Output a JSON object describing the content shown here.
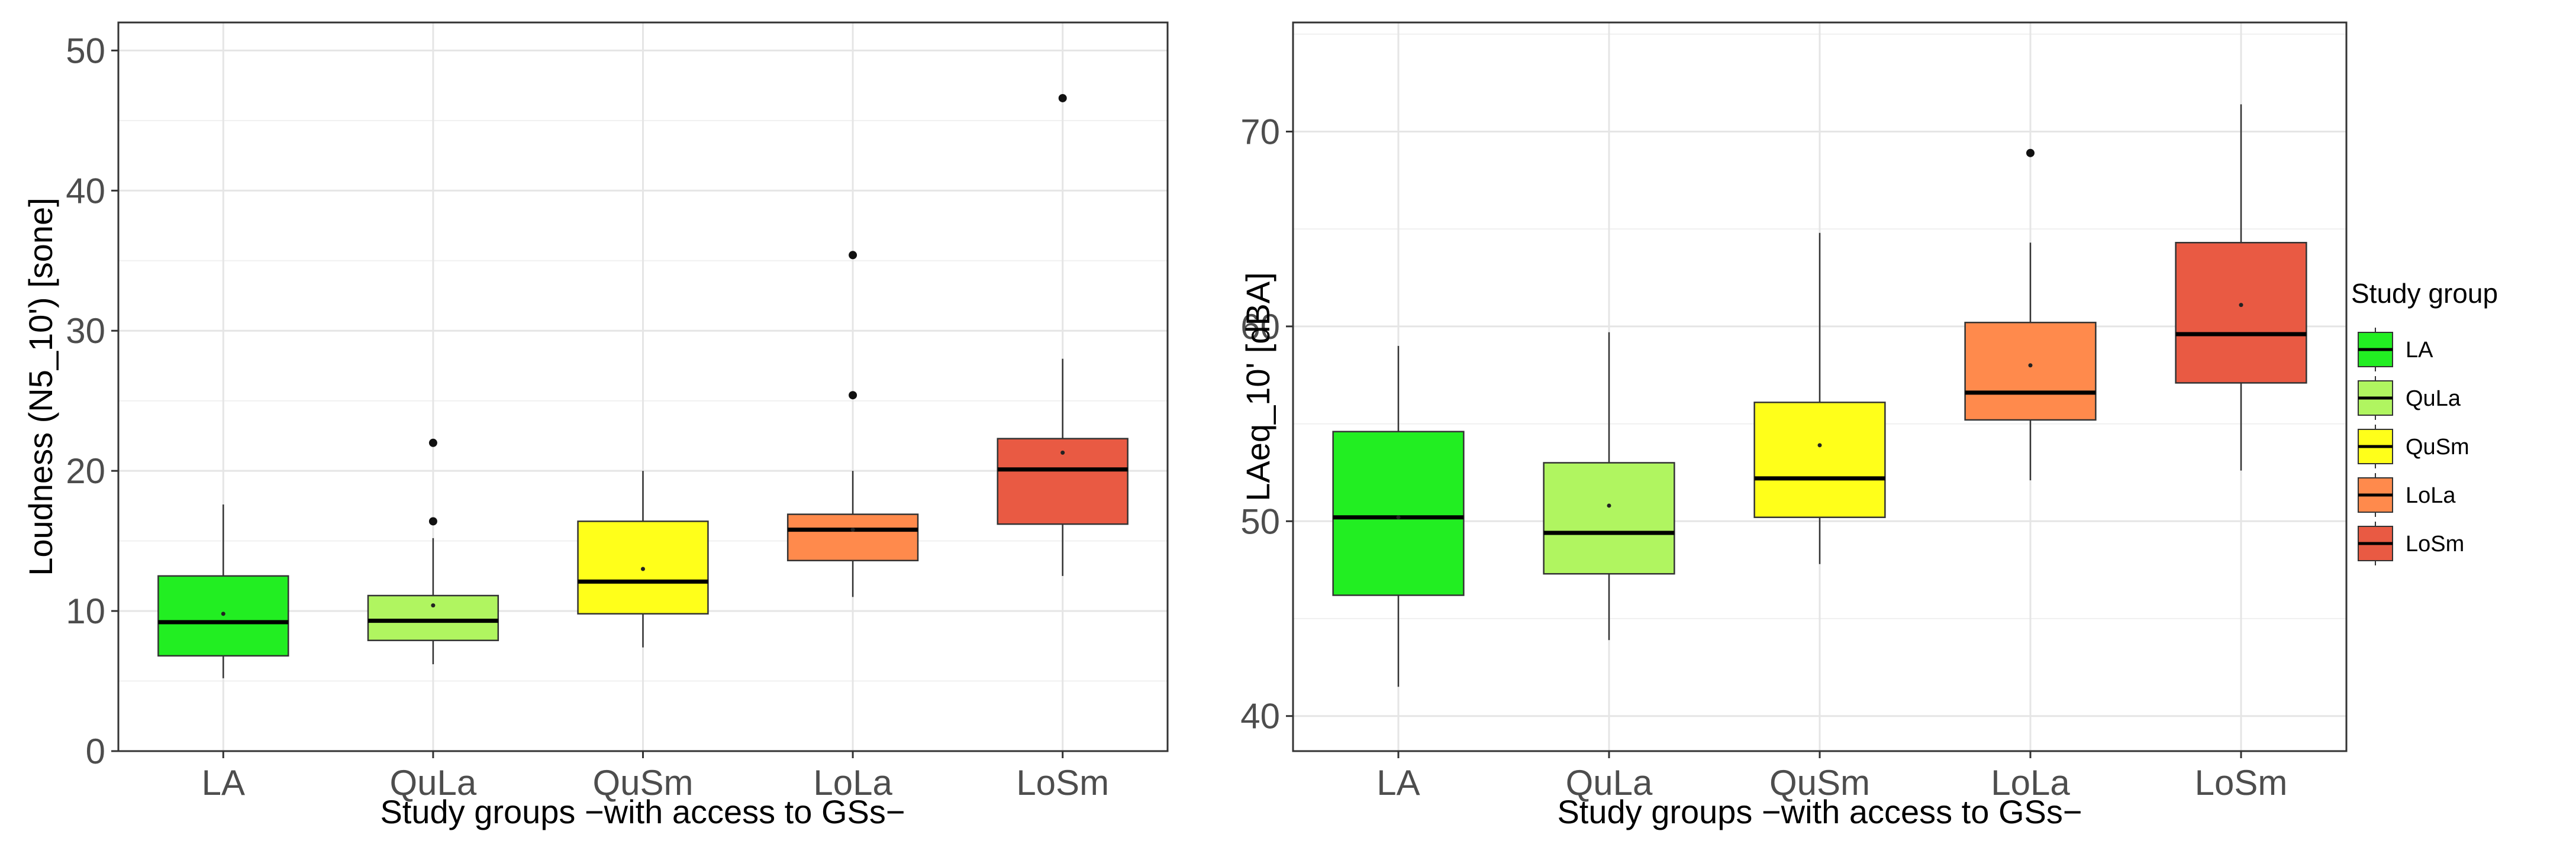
{
  "chart_data": [
    {
      "type": "boxplot",
      "xlabel": "Study groups −with access to GSs−",
      "ylabel": "Loudness (N5_10') [sone]",
      "ylim": [
        0,
        52
      ],
      "yticks": [
        0,
        10,
        20,
        30,
        40,
        50
      ],
      "grid": true,
      "categories": [
        "LA",
        "QuLa",
        "QuSm",
        "LoLa",
        "LoSm"
      ],
      "colors": [
        "#22ee22",
        "#b0f560",
        "#ffff1a",
        "#ff8a4c",
        "#e95a43"
      ],
      "boxes": [
        {
          "group": "LA",
          "whisker_low": 5.2,
          "q1": 6.8,
          "median": 9.2,
          "q3": 12.5,
          "whisker_high": 17.6,
          "mean": 9.8,
          "outliers": []
        },
        {
          "group": "QuLa",
          "whisker_low": 6.2,
          "q1": 7.9,
          "median": 9.3,
          "q3": 11.1,
          "whisker_high": 15.2,
          "mean": 10.4,
          "outliers": [
            16.4,
            22.0
          ]
        },
        {
          "group": "QuSm",
          "whisker_low": 7.4,
          "q1": 9.8,
          "median": 12.1,
          "q3": 16.4,
          "whisker_high": 20.0,
          "mean": 13.0,
          "outliers": []
        },
        {
          "group": "LoLa",
          "whisker_low": 11.0,
          "q1": 13.6,
          "median": 15.8,
          "q3": 16.9,
          "whisker_high": 20.0,
          "mean": 15.8,
          "outliers": [
            25.4,
            35.4
          ]
        },
        {
          "group": "LoSm",
          "whisker_low": 12.5,
          "q1": 16.2,
          "median": 20.1,
          "q3": 22.3,
          "whisker_high": 28.0,
          "mean": 21.3,
          "outliers": [
            46.6
          ]
        }
      ]
    },
    {
      "type": "boxplot",
      "xlabel": "Study groups −with access to GSs−",
      "ylabel": "LAeq_10' [dBA]",
      "ylim": [
        38.2,
        75.6
      ],
      "yticks": [
        40,
        50,
        60,
        70
      ],
      "grid": true,
      "categories": [
        "LA",
        "QuLa",
        "QuSm",
        "LoLa",
        "LoSm"
      ],
      "colors": [
        "#22ee22",
        "#b0f560",
        "#ffff1a",
        "#ff8a4c",
        "#e95a43"
      ],
      "boxes": [
        {
          "group": "LA",
          "whisker_low": 41.5,
          "q1": 46.2,
          "median": 50.2,
          "q3": 54.6,
          "whisker_high": 59.0,
          "mean": 50.2,
          "outliers": []
        },
        {
          "group": "QuLa",
          "whisker_low": 43.9,
          "q1": 47.3,
          "median": 49.4,
          "q3": 53.0,
          "whisker_high": 59.7,
          "mean": 50.8,
          "outliers": []
        },
        {
          "group": "QuSm",
          "whisker_low": 47.8,
          "q1": 50.2,
          "median": 52.2,
          "q3": 56.1,
          "whisker_high": 64.8,
          "mean": 53.9,
          "outliers": []
        },
        {
          "group": "LoLa",
          "whisker_low": 52.1,
          "q1": 55.2,
          "median": 56.6,
          "q3": 60.2,
          "whisker_high": 64.3,
          "mean": 58.0,
          "outliers": [
            68.9
          ]
        },
        {
          "group": "LoSm",
          "whisker_low": 52.6,
          "q1": 57.1,
          "median": 59.6,
          "q3": 64.3,
          "whisker_high": 71.4,
          "mean": 61.1,
          "outliers": []
        }
      ],
      "legend": {
        "title": "Study group",
        "position": "right",
        "items": [
          "LA",
          "QuLa",
          "QuSm",
          "LoLa",
          "LoSm"
        ]
      }
    }
  ]
}
